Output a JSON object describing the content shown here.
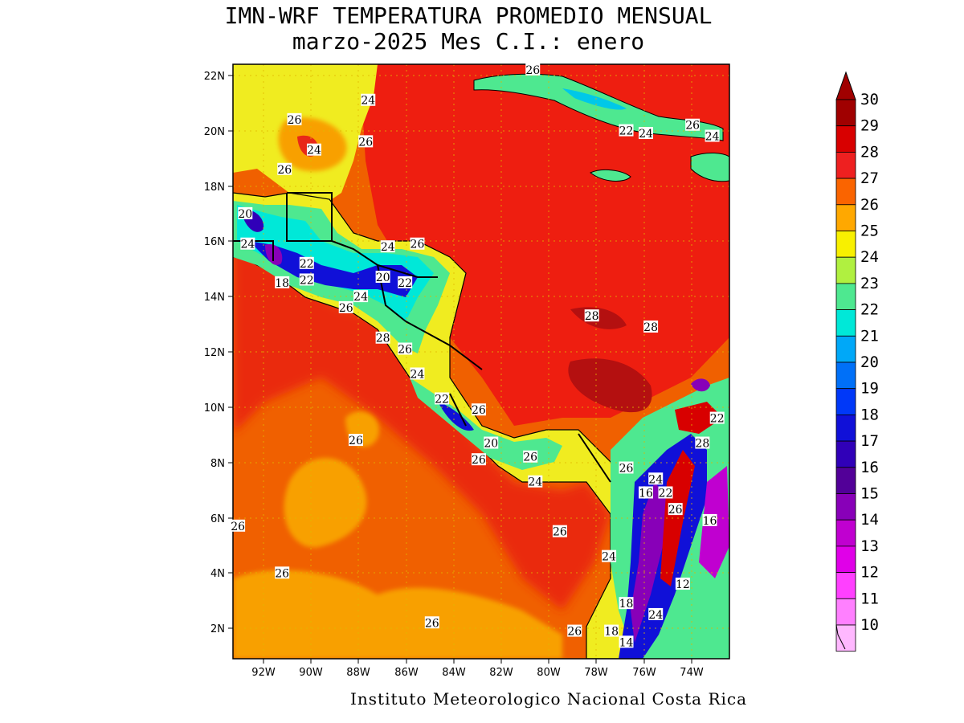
{
  "title_line1": "IMN-WRF  TEMPERATURA PROMEDIO MENSUAL",
  "title_line2": "marzo-2025 Mes C.I.: enero",
  "credit": "Instituto Meteorologico Nacional Costa Rica",
  "map": {
    "lon_range": [
      -93.0,
      -72.8
    ],
    "lat_range": [
      0.9,
      22.4
    ],
    "lon_ticks": [
      "92W",
      "90W",
      "88W",
      "86W",
      "84W",
      "82W",
      "80W",
      "78W",
      "76W",
      "74W"
    ],
    "lat_ticks": [
      "22N",
      "20N",
      "18N",
      "16N",
      "14N",
      "12N",
      "10N",
      "8N",
      "6N",
      "4N",
      "2N"
    ],
    "colors": {
      "ocean_base": "#f06000",
      "caribbean": "#ee1e10",
      "pacific_coast": "#ea2a10",
      "cool_pool": "#f8a000",
      "yucatan": "#f0ec20",
      "gridline": "#e0b800"
    },
    "contour_labels": [
      {
        "text": "26",
        "lon": -80.8,
        "lat": 22.2
      },
      {
        "text": "24",
        "lon": -87.5,
        "lat": 21.1
      },
      {
        "text": "26",
        "lon": -90.5,
        "lat": 20.4
      },
      {
        "text": "22",
        "lon": -77.0,
        "lat": 20.0
      },
      {
        "text": "24",
        "lon": -76.2,
        "lat": 19.9
      },
      {
        "text": "26",
        "lon": -74.3,
        "lat": 20.2
      },
      {
        "text": "24",
        "lon": -73.5,
        "lat": 19.8
      },
      {
        "text": "24",
        "lon": -89.7,
        "lat": 19.3
      },
      {
        "text": "26",
        "lon": -87.6,
        "lat": 19.6
      },
      {
        "text": "26",
        "lon": -90.9,
        "lat": 18.6
      },
      {
        "text": "20",
        "lon": -92.5,
        "lat": 17.0
      },
      {
        "text": "24",
        "lon": -92.4,
        "lat": 15.9
      },
      {
        "text": "24",
        "lon": -86.7,
        "lat": 15.8
      },
      {
        "text": "26",
        "lon": -85.5,
        "lat": 15.9
      },
      {
        "text": "22",
        "lon": -90.0,
        "lat": 15.2
      },
      {
        "text": "20",
        "lon": -86.9,
        "lat": 14.7
      },
      {
        "text": "22",
        "lon": -86.0,
        "lat": 14.5
      },
      {
        "text": "18",
        "lon": -91.0,
        "lat": 14.5
      },
      {
        "text": "22",
        "lon": -90.0,
        "lat": 14.6
      },
      {
        "text": "24",
        "lon": -87.8,
        "lat": 14.0
      },
      {
        "text": "26",
        "lon": -88.4,
        "lat": 13.6
      },
      {
        "text": "28",
        "lon": -86.9,
        "lat": 12.5
      },
      {
        "text": "26",
        "lon": -86.0,
        "lat": 12.1
      },
      {
        "text": "28",
        "lon": -78.4,
        "lat": 13.3
      },
      {
        "text": "28",
        "lon": -76.0,
        "lat": 12.9
      },
      {
        "text": "24",
        "lon": -85.5,
        "lat": 11.2
      },
      {
        "text": "22",
        "lon": -84.5,
        "lat": 10.3
      },
      {
        "text": "26",
        "lon": -83.0,
        "lat": 9.9
      },
      {
        "text": "26",
        "lon": -88.0,
        "lat": 8.8
      },
      {
        "text": "20",
        "lon": -82.5,
        "lat": 8.7
      },
      {
        "text": "26",
        "lon": -83.0,
        "lat": 8.1
      },
      {
        "text": "26",
        "lon": -80.9,
        "lat": 8.2
      },
      {
        "text": "24",
        "lon": -80.7,
        "lat": 7.3
      },
      {
        "text": "26",
        "lon": -77.0,
        "lat": 7.8
      },
      {
        "text": "24",
        "lon": -75.8,
        "lat": 7.4
      },
      {
        "text": "16",
        "lon": -76.2,
        "lat": 6.9
      },
      {
        "text": "22",
        "lon": -75.4,
        "lat": 6.9
      },
      {
        "text": "22",
        "lon": -73.3,
        "lat": 9.6
      },
      {
        "text": "28",
        "lon": -73.9,
        "lat": 8.7
      },
      {
        "text": "26",
        "lon": -75.0,
        "lat": 6.3
      },
      {
        "text": "16",
        "lon": -73.6,
        "lat": 5.9
      },
      {
        "text": "26",
        "lon": -92.8,
        "lat": 5.7
      },
      {
        "text": "26",
        "lon": -79.7,
        "lat": 5.5
      },
      {
        "text": "24",
        "lon": -77.7,
        "lat": 4.6
      },
      {
        "text": "26",
        "lon": -91.0,
        "lat": 4.0
      },
      {
        "text": "12",
        "lon": -74.7,
        "lat": 3.6
      },
      {
        "text": "18",
        "lon": -77.0,
        "lat": 2.9
      },
      {
        "text": "24",
        "lon": -75.8,
        "lat": 2.5
      },
      {
        "text": "26",
        "lon": -84.9,
        "lat": 2.2
      },
      {
        "text": "26",
        "lon": -79.1,
        "lat": 1.9
      },
      {
        "text": "18",
        "lon": -77.6,
        "lat": 1.9
      },
      {
        "text": "14",
        "lon": -77.0,
        "lat": 1.5
      }
    ]
  },
  "colorbar": {
    "labels": [
      "30",
      "29",
      "28",
      "27",
      "26",
      "25",
      "24",
      "23",
      "22",
      "21",
      "20",
      "19",
      "18",
      "17",
      "16",
      "15",
      "14",
      "13",
      "12",
      "11",
      "10"
    ],
    "colors": [
      "#a00000",
      "#d80000",
      "#ee2020",
      "#fa6400",
      "#ffa800",
      "#f8f000",
      "#b0f040",
      "#4ee890",
      "#00e8d8",
      "#00a8f8",
      "#0070f8",
      "#0038f8",
      "#1010d8",
      "#3000b8",
      "#520098",
      "#8800b8",
      "#c000d0",
      "#e000e8",
      "#ff40ff",
      "#ff80ff",
      "#ffb8ff"
    ],
    "top_arrow_color": "#a00000"
  }
}
